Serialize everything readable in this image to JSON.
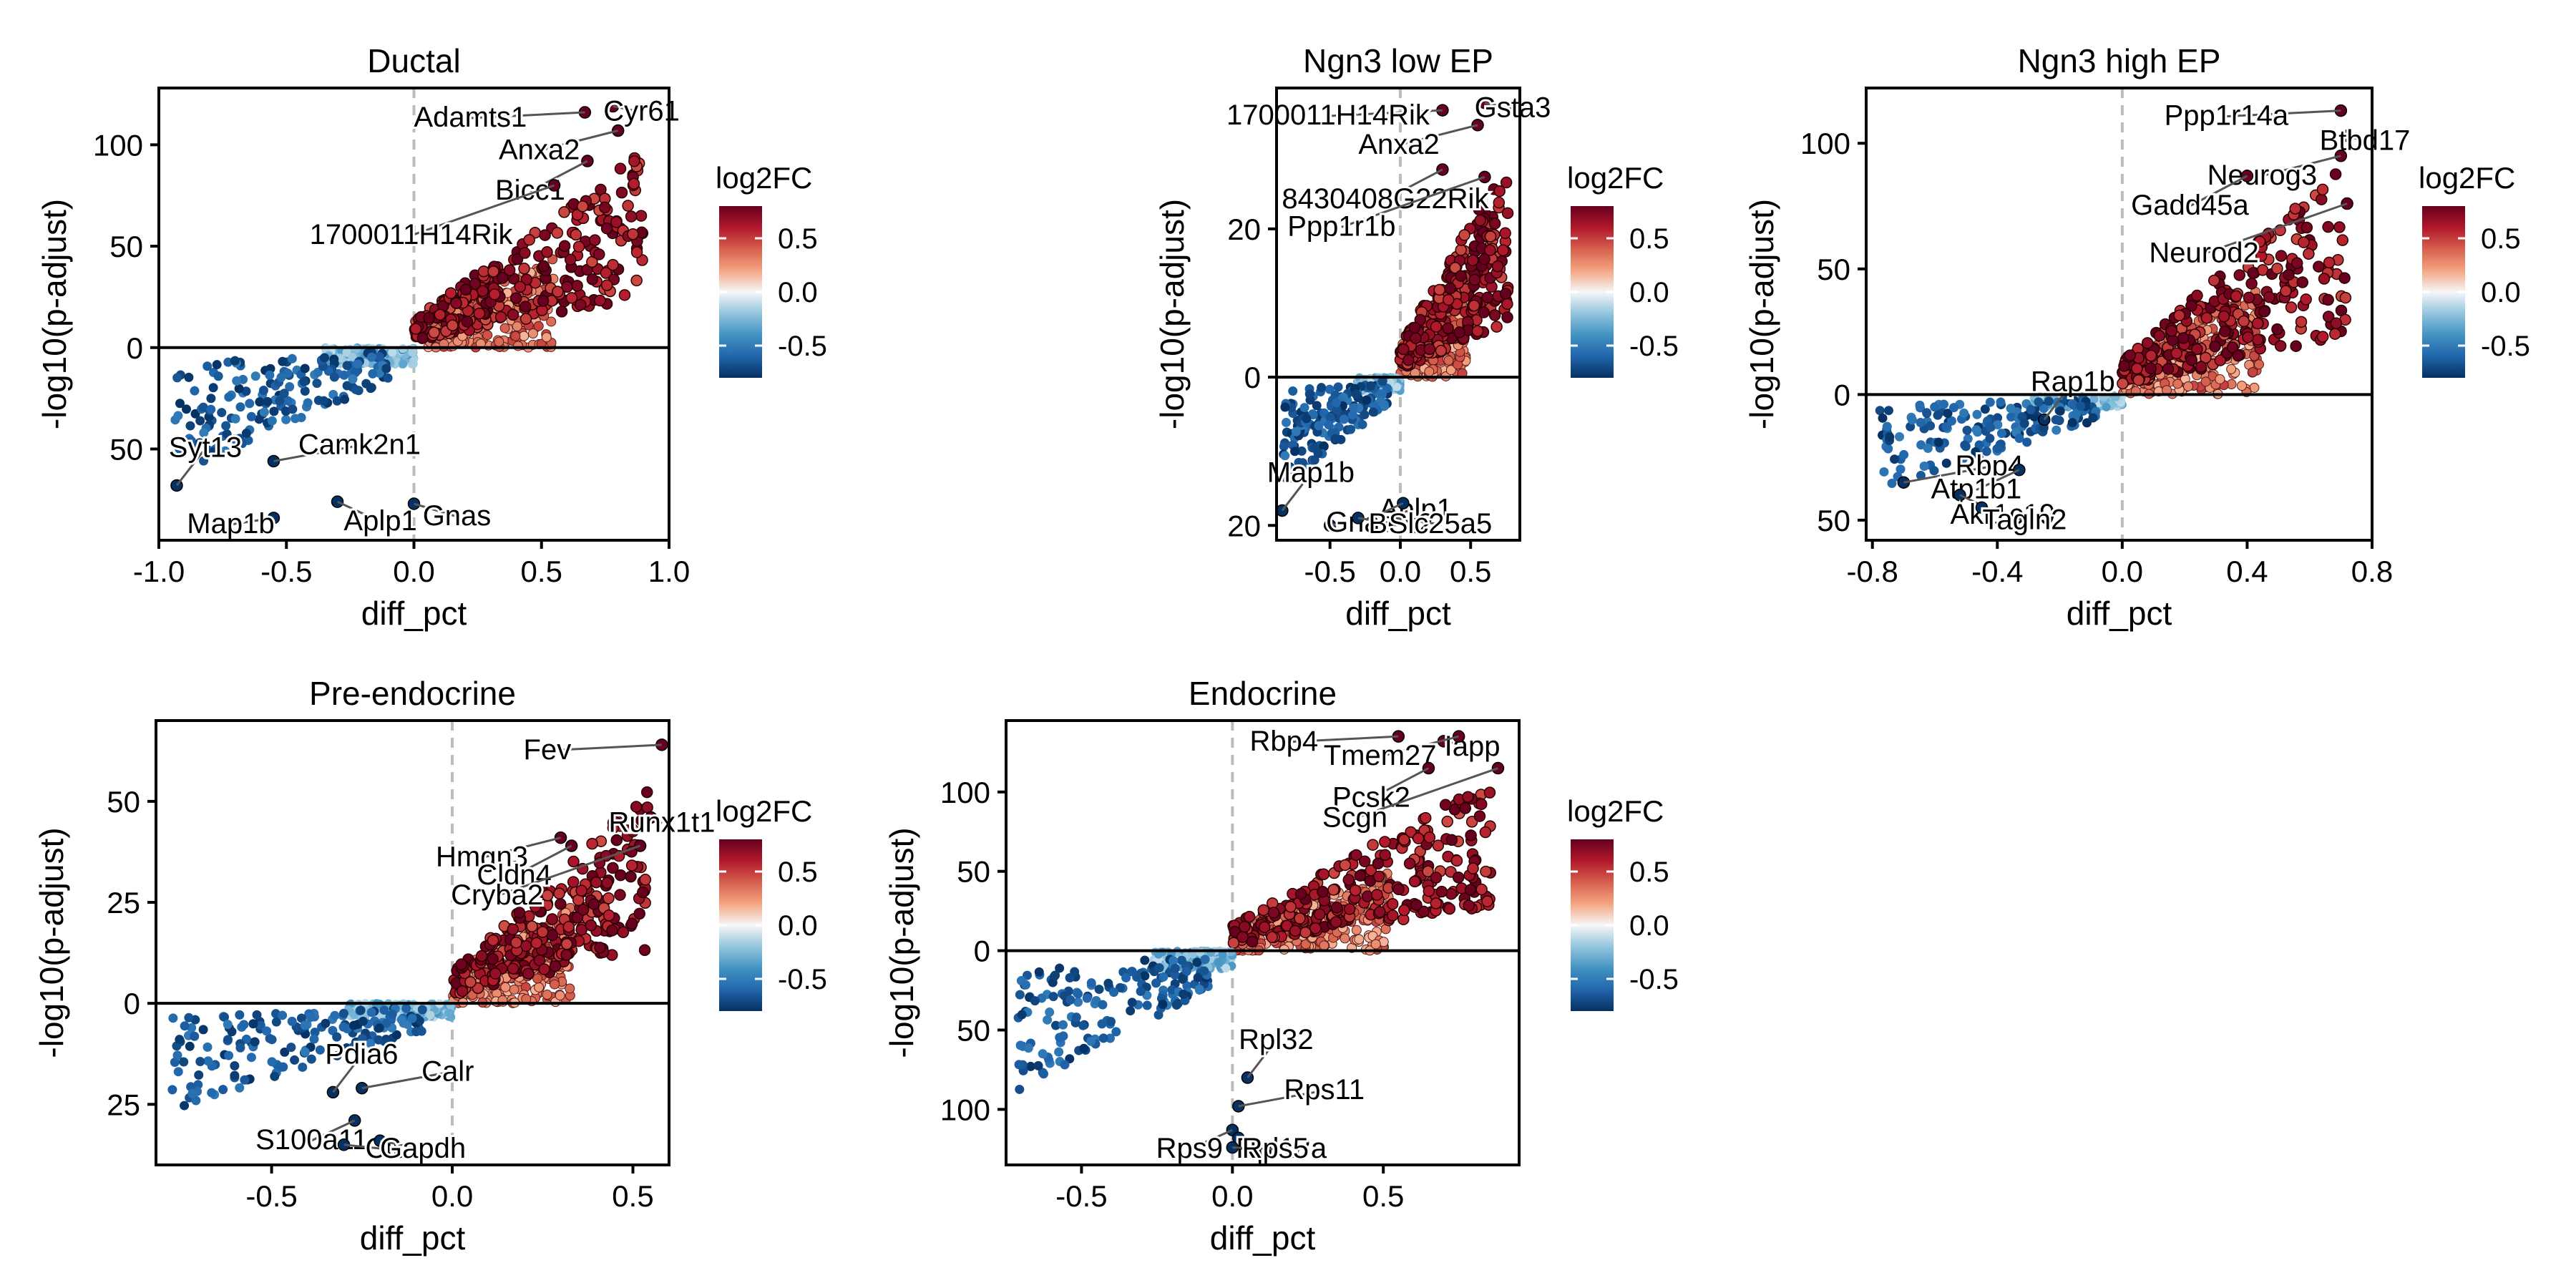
{
  "figure": {
    "xlabel": "diff_pct",
    "ylabel": "-log10(p-adjust)",
    "legend_title": "log2FC",
    "legend_ticks": [
      "0.5",
      "0.0",
      "-0.5"
    ],
    "legend_tick_values": [
      0.5,
      0.0,
      -0.5
    ],
    "colorscale": [
      "#053061",
      "#2166ac",
      "#4393c3",
      "#92c5de",
      "#f7f7f7",
      "#f4a582",
      "#d6604d",
      "#b2182b",
      "#67001f"
    ],
    "colorscale_range": [
      -0.8,
      0.8
    ]
  },
  "chart_data": [
    {
      "type": "scatter",
      "title": "Ductal",
      "xlim": [
        -1.0,
        1.0
      ],
      "ylim": [
        -95,
        128
      ],
      "xticks": [
        -1.0,
        -0.5,
        0.0,
        0.5,
        1.0
      ],
      "xtick_labels": [
        "-1.0",
        "-0.5",
        "0.0",
        "0.5",
        "1.0"
      ],
      "yticks": [
        100,
        50,
        0,
        -50
      ],
      "ytick_labels": [
        "100",
        "50",
        "0",
        "50"
      ],
      "up_labels": [
        {
          "text": "Adamts1",
          "x": 0.67,
          "y": 116
        },
        {
          "text": "Cyr61",
          "x": 0.78,
          "y": 119
        },
        {
          "text": "Anxa2",
          "x": 0.8,
          "y": 107
        },
        {
          "text": "Bicc1",
          "x": 0.68,
          "y": 92
        },
        {
          "text": "1700011H14Rik",
          "x": 0.55,
          "y": 80
        }
      ],
      "down_labels": [
        {
          "text": "Syt13",
          "x": -0.93,
          "y": -68
        },
        {
          "text": "Camk2n1",
          "x": -0.55,
          "y": -56
        },
        {
          "text": "Map1b",
          "x": -0.55,
          "y": -84
        },
        {
          "text": "Aplp1",
          "x": -0.3,
          "y": -76
        },
        {
          "text": "Gnas",
          "x": 0.0,
          "y": -77
        }
      ]
    },
    {
      "type": "scatter",
      "title": "Ngn3 low EP",
      "xlim": [
        -0.88,
        0.85
      ],
      "ylim": [
        -22,
        39
      ],
      "xticks": [
        -0.5,
        0.0,
        0.5
      ],
      "xtick_labels": [
        "-0.5",
        "0.0",
        "0.5"
      ],
      "yticks": [
        20,
        0,
        -20
      ],
      "ytick_labels": [
        "20",
        "0",
        "20"
      ],
      "up_labels": [
        {
          "text": "1700011H14Rik",
          "x": 0.3,
          "y": 36
        },
        {
          "text": "Gsta3",
          "x": 0.6,
          "y": 37
        },
        {
          "text": "Anxa2",
          "x": 0.55,
          "y": 34
        },
        {
          "text": "8430408G22Rik",
          "x": 0.3,
          "y": 28
        },
        {
          "text": "Ppp1r1b",
          "x": 0.6,
          "y": 27
        }
      ],
      "down_labels": [
        {
          "text": "Map1b",
          "x": -0.84,
          "y": -18
        },
        {
          "text": "Aplp1",
          "x": -0.5,
          "y": -20
        },
        {
          "text": "Gnas",
          "x": 0.02,
          "y": -17
        },
        {
          "text": "Bex2",
          "x": -0.3,
          "y": -19
        },
        {
          "text": "Slc25a5",
          "x": -0.02,
          "y": -19
        }
      ]
    },
    {
      "type": "scatter",
      "title": "Ngn3 high EP",
      "xlim": [
        -0.82,
        0.8
      ],
      "ylim": [
        -58,
        122
      ],
      "xticks": [
        -0.8,
        -0.4,
        0.0,
        0.4,
        0.8
      ],
      "xtick_labels": [
        "-0.8",
        "-0.4",
        "0.0",
        "0.4",
        "0.8"
      ],
      "yticks": [
        100,
        50,
        0,
        -50
      ],
      "ytick_labels": [
        "100",
        "50",
        "0",
        "50"
      ],
      "up_labels": [
        {
          "text": "Ppp1r14a",
          "x": 0.7,
          "y": 113
        },
        {
          "text": "Btbd17",
          "x": 0.72,
          "y": 103
        },
        {
          "text": "Neurog3",
          "x": 0.7,
          "y": 95
        },
        {
          "text": "Gadd45a",
          "x": 0.4,
          "y": 87
        },
        {
          "text": "Neurod2",
          "x": 0.72,
          "y": 76
        }
      ],
      "down_labels": [
        {
          "text": "Rap1b",
          "x": -0.25,
          "y": -10
        },
        {
          "text": "Rbp4",
          "x": -0.7,
          "y": -35
        },
        {
          "text": "Atp1b1",
          "x": -0.33,
          "y": -30
        },
        {
          "text": "Akr1c19",
          "x": -0.52,
          "y": -40
        },
        {
          "text": "Tagln2",
          "x": -0.45,
          "y": -45
        }
      ]
    },
    {
      "type": "scatter",
      "title": "Pre-endocrine",
      "xlim": [
        -0.82,
        0.6
      ],
      "ylim": [
        -40,
        70
      ],
      "xticks": [
        -0.5,
        0.0,
        0.5
      ],
      "xtick_labels": [
        "-0.5",
        "0.0",
        "0.5"
      ],
      "yticks": [
        50,
        25,
        0,
        -25
      ],
      "ytick_labels": [
        "50",
        "25",
        "0",
        "25"
      ],
      "up_labels": [
        {
          "text": "Fev",
          "x": 0.58,
          "y": 64
        },
        {
          "text": "Runx1t1",
          "x": 0.55,
          "y": 46
        },
        {
          "text": "Hmgn3",
          "x": 0.3,
          "y": 41
        },
        {
          "text": "Cldn4",
          "x": 0.33,
          "y": 39
        },
        {
          "text": "Cryba2",
          "x": 0.52,
          "y": 39
        }
      ],
      "down_labels": [
        {
          "text": "Pdia6",
          "x": -0.33,
          "y": -22
        },
        {
          "text": "Calr",
          "x": -0.25,
          "y": -21
        },
        {
          "text": "S100a11",
          "x": -0.27,
          "y": -29
        },
        {
          "text": "Clu",
          "x": -0.3,
          "y": -35
        },
        {
          "text": "Gapdh",
          "x": -0.2,
          "y": -34
        }
      ]
    },
    {
      "type": "scatter",
      "title": "Endocrine",
      "xlim": [
        -0.75,
        0.95
      ],
      "ylim": [
        -135,
        145
      ],
      "xticks": [
        -0.5,
        0.0,
        0.5
      ],
      "xtick_labels": [
        "-0.5",
        "0.0",
        "0.5"
      ],
      "yticks": [
        100,
        50,
        0,
        -50,
        -100
      ],
      "ytick_labels": [
        "100",
        "50",
        "0",
        "50",
        "100"
      ],
      "up_labels": [
        {
          "text": "Rbp4",
          "x": 0.55,
          "y": 135
        },
        {
          "text": "Iapp",
          "x": 0.7,
          "y": 132
        },
        {
          "text": "Tmem27",
          "x": 0.75,
          "y": 135
        },
        {
          "text": "Pcsk2",
          "x": 0.65,
          "y": 115
        },
        {
          "text": "Scgn",
          "x": 0.88,
          "y": 115
        }
      ],
      "down_labels": [
        {
          "text": "Rpl32",
          "x": 0.05,
          "y": -80
        },
        {
          "text": "Rps11",
          "x": 0.02,
          "y": -98
        },
        {
          "text": "Rps9",
          "x": 0.0,
          "y": -113
        },
        {
          "text": "Rpl18a",
          "x": 0.02,
          "y": -118
        },
        {
          "text": "Rps5",
          "x": 0.0,
          "y": -124
        }
      ]
    }
  ]
}
